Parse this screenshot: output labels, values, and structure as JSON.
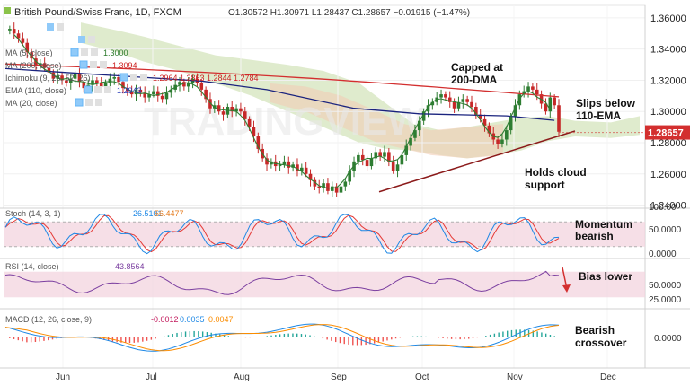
{
  "header": {
    "symbol": "British Pound/Swiss Franc, 1D, FXCM",
    "open": "O1.30572",
    "high": "H1.30971",
    "low": "L1.28437",
    "close": "C1.28657",
    "change": "−0.01915 (−1.47%)"
  },
  "indicator_labels": [
    {
      "name": "MA (5, close)",
      "value": "1.3000",
      "color": "#2c7a2c"
    },
    {
      "name": "MA (200, close)",
      "value": "1.3094",
      "color": "#cc2222"
    },
    {
      "name": "Ichimoku (9, 26, 52, 26)",
      "values": [
        "1.2964",
        "1.2863",
        "1.2844",
        "1.2784"
      ],
      "color": "#cc2222"
    },
    {
      "name": "EMA (110, close)",
      "value": "1.2943",
      "color": "#2a3db8"
    },
    {
      "name": "MA (20, close)",
      "value": "",
      "color": "#2c7a2c"
    }
  ],
  "current_price": "1.28657",
  "colors": {
    "up": "#2e7d32",
    "down": "#c62828",
    "ma200": "#d32f2f",
    "ema110": "#1a237e",
    "ma5": "#2e7d32",
    "cloud_green": "#c5dba4",
    "cloud_red": "#f2cdb6",
    "stoch_k": "#1e88e5",
    "stoch_d": "#e53935",
    "rsi": "#7b3fa0",
    "osc_band": "#f3d4df",
    "price_tag": "#d32f2f"
  },
  "annotations": {
    "capped": [
      "Capped at",
      "200-DMA"
    ],
    "slips": [
      "Slips below",
      "110-EMA"
    ],
    "holds": [
      "Holds cloud",
      "support"
    ],
    "momentum": [
      "Momentum",
      "bearish"
    ],
    "bias": "Bias lower",
    "macd": [
      "Bearish",
      "crossover"
    ]
  },
  "watermark": "TRADINGVIEW",
  "stoch": {
    "label": "Stoch (14, 3, 1)",
    "k": "26.5101",
    "d": "56.4477",
    "ticks": [
      "100.00",
      "50.0000",
      "0.0000"
    ]
  },
  "rsi": {
    "label": "RSI (14, close)",
    "value": "43.8564",
    "ticks": [
      "50.0000",
      "25.0000"
    ]
  },
  "macd": {
    "label": "MACD (12, 26, close, 9)",
    "values": [
      "-0.0012",
      "0.0035",
      "0.0047"
    ],
    "tick": "0.0000"
  },
  "chart_data": {
    "type": "candlestick",
    "title": "British Pound/Swiss Franc, 1D, FXCM",
    "x_months": [
      "Jun",
      "Jul",
      "Aug",
      "Sep",
      "Oct",
      "Nov",
      "Dec"
    ],
    "y_ticks": [
      "1.36000",
      "1.34000",
      "1.32000",
      "1.30000",
      "1.28000",
      "1.26000",
      "1.24000"
    ],
    "ylim": [
      1.238,
      1.368
    ],
    "close_path": [
      1.352,
      1.353,
      1.35,
      1.347,
      1.344,
      1.338,
      1.334,
      1.33,
      1.331,
      1.328,
      1.325,
      1.321,
      1.323,
      1.32,
      1.318,
      1.321,
      1.324,
      1.319,
      1.315,
      1.317,
      1.32,
      1.318,
      1.316,
      1.318,
      1.321,
      1.322,
      1.319,
      1.315,
      1.313,
      1.311,
      1.314,
      1.312,
      1.309,
      1.311,
      1.313,
      1.31,
      1.308,
      1.312,
      1.314,
      1.317,
      1.319,
      1.316,
      1.318,
      1.321,
      1.318,
      1.314,
      1.308,
      1.302,
      1.304,
      1.3,
      1.298,
      1.303,
      1.3,
      1.302,
      1.3,
      1.295,
      1.29,
      1.284,
      1.276,
      1.27,
      1.266,
      1.268,
      1.265,
      1.266,
      1.268,
      1.264,
      1.266,
      1.262,
      1.264,
      1.26,
      1.256,
      1.252,
      1.251,
      1.254,
      1.249,
      1.252,
      1.248,
      1.252,
      1.255,
      1.262,
      1.268,
      1.272,
      1.269,
      1.265,
      1.27,
      1.274,
      1.271,
      1.274,
      1.268,
      1.262,
      1.266,
      1.272,
      1.278,
      1.283,
      1.288,
      1.294,
      1.3,
      1.304,
      1.306,
      1.309,
      1.311,
      1.309,
      1.306,
      1.302,
      1.306,
      1.308,
      1.306,
      1.303,
      1.298,
      1.295,
      1.291,
      1.286,
      1.282,
      1.279,
      1.282,
      1.288,
      1.297,
      1.304,
      1.311,
      1.313,
      1.316,
      1.314,
      1.311,
      1.305,
      1.3,
      1.309,
      1.304,
      1.287
    ],
    "ma200": {
      "start": 1.3305,
      "end": 1.3094
    },
    "ema110": {
      "points": [
        [
          0,
          1.3275
        ],
        [
          14,
          1.325
        ],
        [
          45,
          1.3195
        ],
        [
          60,
          1.314
        ],
        [
          80,
          1.302
        ],
        [
          95,
          1.2985
        ],
        [
          115,
          1.2972
        ],
        [
          126,
          1.2943
        ]
      ]
    }
  }
}
